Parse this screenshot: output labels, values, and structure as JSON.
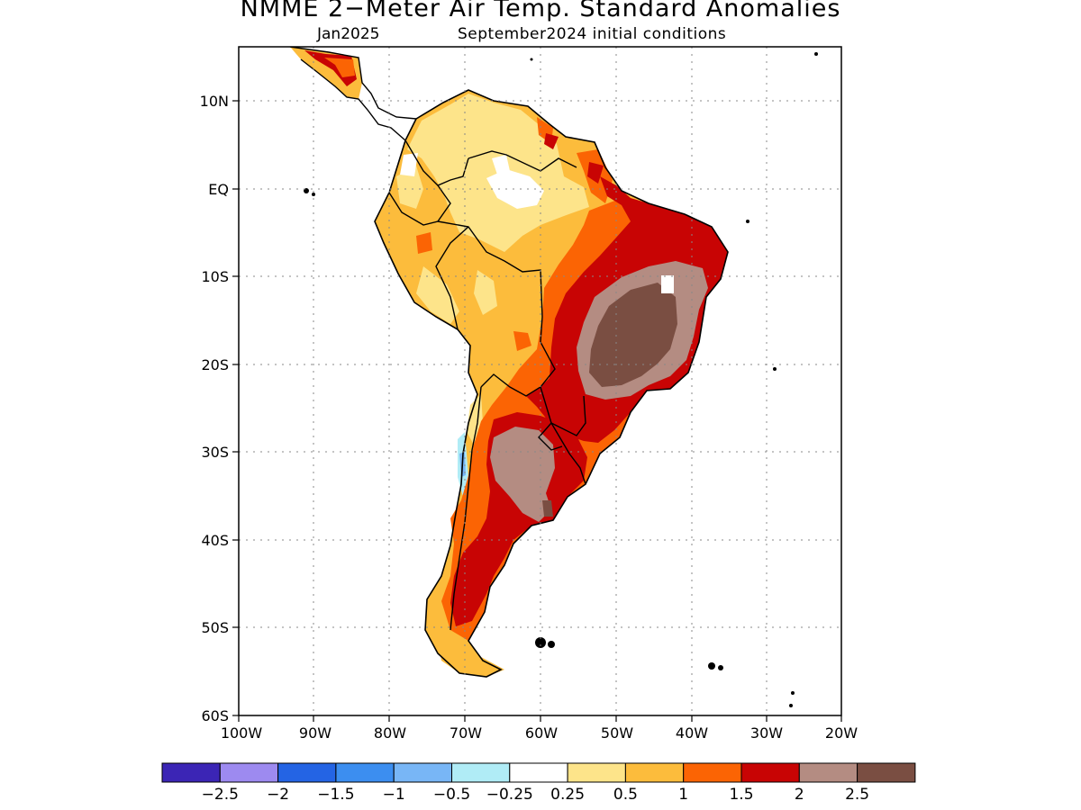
{
  "title": "NMME 2−Meter Air Temp. Standard Anomalies",
  "subtitle_left": "Jan2025",
  "subtitle_right": "September2024 initial conditions",
  "lat_ticks": [
    "10N",
    "EQ",
    "10S",
    "20S",
    "30S",
    "40S",
    "50S",
    "60S"
  ],
  "lon_ticks": [
    "100W",
    "90W",
    "80W",
    "70W",
    "60W",
    "50W",
    "40W",
    "30W",
    "20W"
  ],
  "colorbar": {
    "colors": [
      "#3b25b5",
      "#9d8af0",
      "#2464e4",
      "#3c8ef0",
      "#78b6f6",
      "#b0ecf6",
      "#ffffff",
      "#fde48a",
      "#fcbc3c",
      "#fb6404",
      "#c80404",
      "#b48c82",
      "#7a4e42"
    ],
    "labels": [
      "−2.5",
      "−2",
      "−1.5",
      "−1",
      "−0.5",
      "−0.25",
      "0.25",
      "0.5",
      "1",
      "1.5",
      "2",
      "2.5"
    ]
  },
  "colors": {
    "land_outline": "#000000",
    "very_warm": "#7a4e42",
    "warm_high": "#b48c82",
    "red": "#c80404",
    "orange": "#fb6404",
    "light_orange": "#fcbc3c",
    "yellow": "#fde48a"
  }
}
